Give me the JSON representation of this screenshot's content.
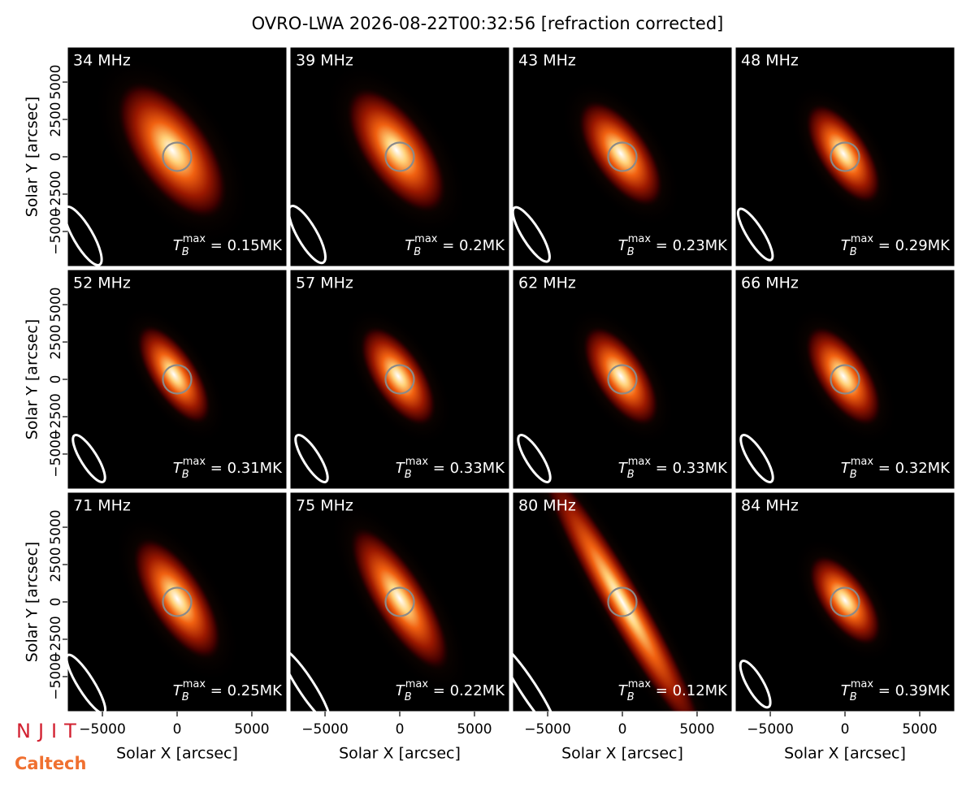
{
  "chart_data": {
    "type": "image-grid",
    "title": "OVRO-LWA 2026-08-22T00:32:56 [refraction corrected]",
    "xlabel": "Solar X [arcsec]",
    "ylabel": "Solar Y [arcsec]",
    "xlim": [
      -7340,
      7340
    ],
    "ylim": [
      -7340,
      7340
    ],
    "xticks": [
      {
        "value": -5000,
        "label": "−5000"
      },
      0,
      5000
    ],
    "yticks": [
      {
        "value": -5000,
        "label": "−5000"
      },
      {
        "value": -2500,
        "label": "−2500"
      },
      0,
      2500,
      5000
    ],
    "tb_symbol": "T",
    "tb_subscript": "B",
    "tb_superscript": "max",
    "tb_equals": " = ",
    "tb_unit": "MK",
    "panels": [
      {
        "label": "34 MHz",
        "tb_max": 0.15
      },
      {
        "label": "39 MHz",
        "tb_max": 0.2
      },
      {
        "label": "43 MHz",
        "tb_max": 0.23
      },
      {
        "label": "48 MHz",
        "tb_max": 0.29
      },
      {
        "label": "52 MHz",
        "tb_max": 0.31
      },
      {
        "label": "57 MHz",
        "tb_max": 0.33
      },
      {
        "label": "62 MHz",
        "tb_max": 0.33
      },
      {
        "label": "66 MHz",
        "tb_max": 0.32
      },
      {
        "label": "71 MHz",
        "tb_max": 0.25
      },
      {
        "label": "75 MHz",
        "tb_max": 0.22
      },
      {
        "label": "80 MHz",
        "tb_max": 0.12
      },
      {
        "label": "84 MHz",
        "tb_max": 0.39
      }
    ],
    "logos": [
      "NJIT",
      "Caltech"
    ]
  }
}
